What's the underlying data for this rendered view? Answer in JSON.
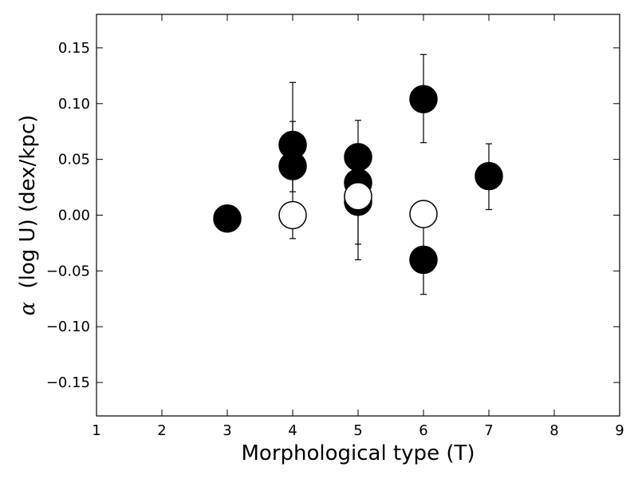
{
  "chart_data": {
    "type": "scatter",
    "xlabel": "Morphological type (T)",
    "ylabel_symbol": "α",
    "ylabel": "(log U) (dex/kpc)",
    "xlim": [
      1,
      9
    ],
    "ylim": [
      -0.18,
      0.18
    ],
    "xticks": [
      1,
      2,
      3,
      4,
      5,
      6,
      7,
      8,
      9
    ],
    "xtick_labels": [
      "1",
      "2",
      "3",
      "4",
      "5",
      "6",
      "7",
      "8",
      "9"
    ],
    "yticks": [
      -0.15,
      -0.1,
      -0.05,
      0.0,
      0.05,
      0.1,
      0.15
    ],
    "ytick_labels": [
      "−0.15",
      "−0.10",
      "−0.05",
      "0.00",
      "0.05",
      "0.10",
      "0.15"
    ],
    "grid": false,
    "series": [
      {
        "marker": "filled",
        "color": "#000000",
        "points": [
          {
            "x": 3,
            "y": -0.003
          },
          {
            "x": 4,
            "y": 0.063,
            "yerr_low": 0.021,
            "yerr_high": 0.084
          },
          {
            "x": 4,
            "y": 0.044,
            "yerr_low": -0.021,
            "yerr_high": 0.119
          },
          {
            "x": 5,
            "y": 0.052,
            "yerr_low": 0.019,
            "yerr_high": 0.085
          },
          {
            "x": 5,
            "y": 0.029
          },
          {
            "x": 5,
            "y": 0.012,
            "yerr_low": -0.04,
            "yerr_high": 0.064
          },
          {
            "x": 6,
            "y": 0.104,
            "yerr_low": 0.065,
            "yerr_high": 0.144
          },
          {
            "x": 6,
            "y": -0.04,
            "yerr_low": -0.071,
            "yerr_high": -0.01
          },
          {
            "x": 7,
            "y": 0.035,
            "yerr_low": 0.005,
            "yerr_high": 0.064
          }
        ]
      },
      {
        "marker": "open",
        "color": "#000000",
        "fill": "#ffffff",
        "points": [
          {
            "x": 4,
            "y": 0.0
          },
          {
            "x": 5,
            "y": 0.017,
            "yerr_low": -0.026,
            "yerr_high": 0.06
          },
          {
            "x": 6,
            "y": 0.001
          }
        ]
      }
    ]
  }
}
